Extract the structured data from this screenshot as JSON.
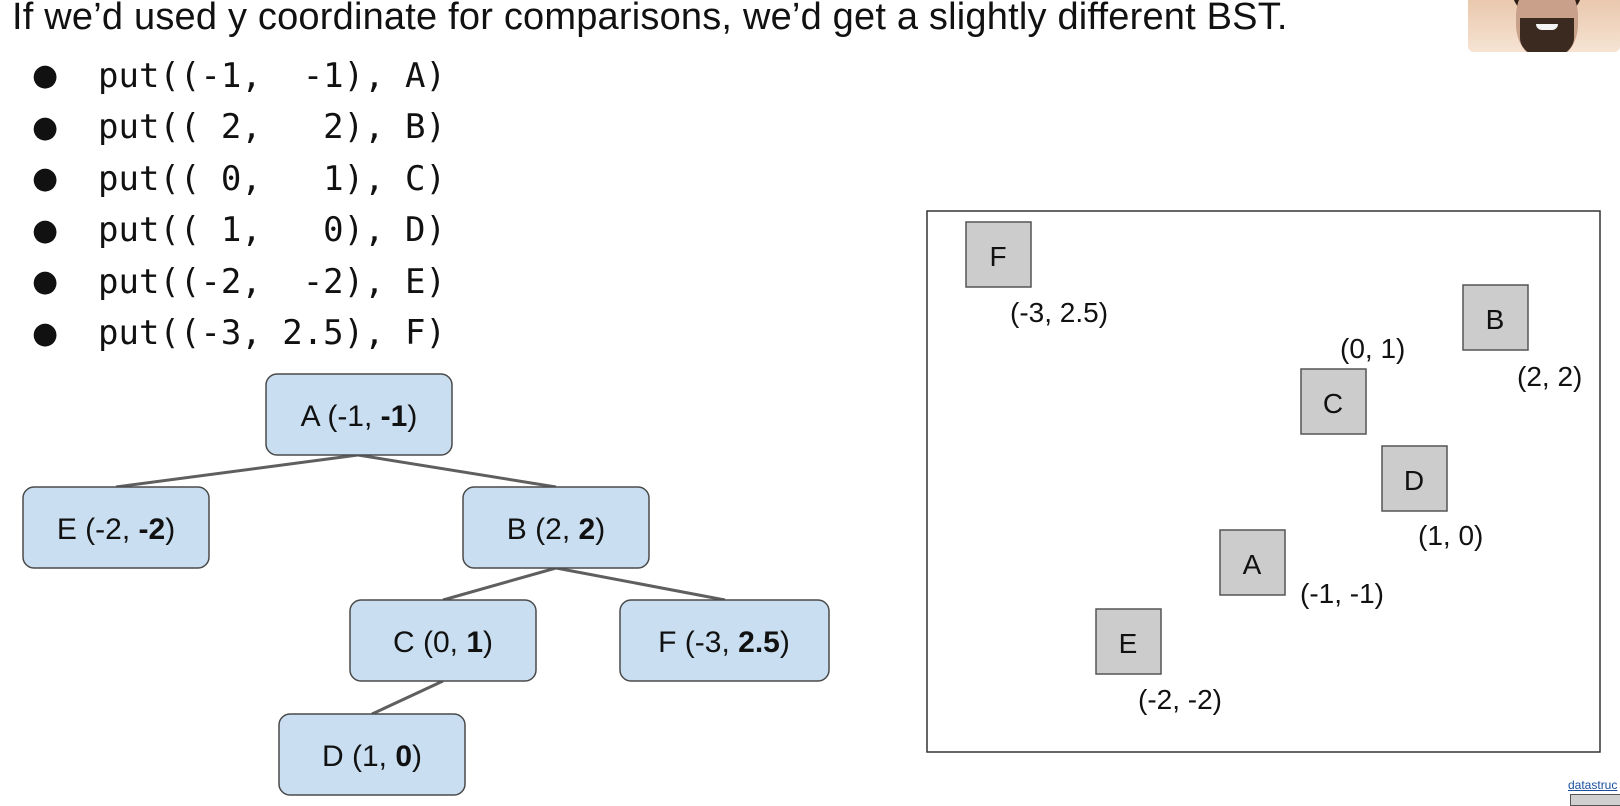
{
  "title": "If we’d used y coordinate for comparisons, we’d get a slightly different BST.",
  "put_calls": [
    "put((-1,  -1), A)",
    "put(( 2,   2), B)",
    "put(( 0,   1), C)",
    "put(( 1,   0), D)",
    "put((-2,  -2), E)",
    "put((-3, 2.5), F)"
  ],
  "tree": {
    "nodes": [
      {
        "id": "A",
        "label": "A (-1, ",
        "bold": "-1",
        "close": ")"
      },
      {
        "id": "E",
        "label": "E (-2, ",
        "bold": "-2",
        "close": ")"
      },
      {
        "id": "B",
        "label": "B (2, ",
        "bold": "2",
        "close": ")"
      },
      {
        "id": "C",
        "label": "C (0, ",
        "bold": "1",
        "close": ")"
      },
      {
        "id": "F",
        "label": "F (-3, ",
        "bold": "2.5",
        "close": ")"
      },
      {
        "id": "D",
        "label": "D (1, ",
        "bold": "0",
        "close": ")"
      }
    ],
    "edges": [
      [
        "A",
        "E"
      ],
      [
        "A",
        "B"
      ],
      [
        "B",
        "C"
      ],
      [
        "B",
        "F"
      ],
      [
        "C",
        "D"
      ]
    ]
  },
  "plane": {
    "points": [
      {
        "name": "F",
        "coord": "(-3, 2.5)"
      },
      {
        "name": "B",
        "coord": "(2, 2)"
      },
      {
        "name": "C",
        "coord": "(0, 1)"
      },
      {
        "name": "D",
        "coord": "(1, 0)"
      },
      {
        "name": "A",
        "coord": "(-1, -1)"
      },
      {
        "name": "E",
        "coord": "(-2, -2)"
      }
    ]
  },
  "footer_text": "datastruc",
  "colors": {
    "node_fill": "#c9dff1",
    "node_stroke": "#4a4a4a",
    "edge": "#5f5f5f",
    "point_fill": "#cccccc",
    "point_stroke": "#555555"
  }
}
